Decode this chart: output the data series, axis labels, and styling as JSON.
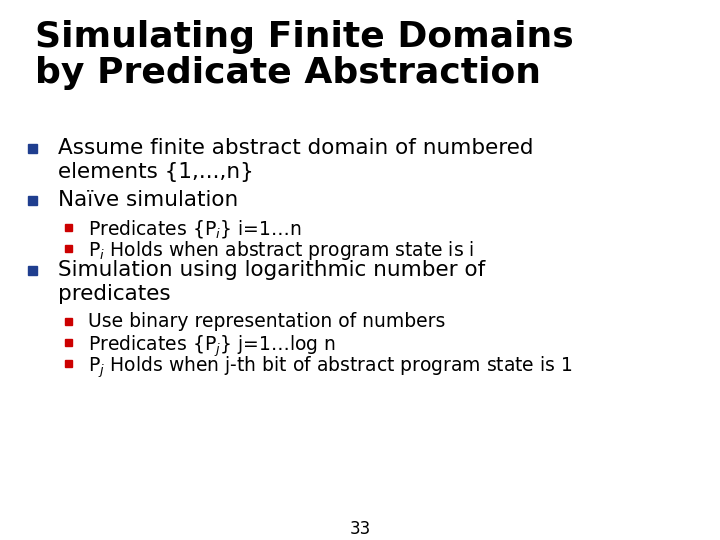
{
  "title_line1": "Simulating Finite Domains",
  "title_line2": "by Predicate Abstraction",
  "title_fontsize": 26,
  "title_color": "#000000",
  "background_color": "#ffffff",
  "bullet_blue": "#1F3E8F",
  "bullet_red": "#CC0000",
  "page_number": "33",
  "fig_w": 7.2,
  "fig_h": 5.4,
  "dpi": 100,
  "items": [
    {
      "level": 1,
      "lines": [
        "Assume finite abstract domain of numbered",
        "elements {1,...,n}"
      ],
      "bullet_color": "#1F3E8F",
      "fontsize": 15.5
    },
    {
      "level": 1,
      "lines": [
        "Naïve simulation"
      ],
      "bullet_color": "#1F3E8F",
      "fontsize": 15.5
    },
    {
      "level": 2,
      "lines": [
        "Predicates {P$_i$} i=1…n"
      ],
      "bullet_color": "#CC0000",
      "fontsize": 13.5
    },
    {
      "level": 2,
      "lines": [
        "P$_i$ Holds when abstract program state is i"
      ],
      "bullet_color": "#CC0000",
      "fontsize": 13.5
    },
    {
      "level": 1,
      "lines": [
        "Simulation using logarithmic number of",
        "predicates"
      ],
      "bullet_color": "#1F3E8F",
      "fontsize": 15.5
    },
    {
      "level": 2,
      "lines": [
        "Use binary representation of numbers"
      ],
      "bullet_color": "#CC0000",
      "fontsize": 13.5
    },
    {
      "level": 2,
      "lines": [
        "Predicates {P$_j$} j=1…log n"
      ],
      "bullet_color": "#CC0000",
      "fontsize": 13.5
    },
    {
      "level": 2,
      "lines": [
        "P$_j$ Holds when j-th bit of abstract program state is 1"
      ],
      "bullet_color": "#CC0000",
      "fontsize": 13.5
    }
  ]
}
